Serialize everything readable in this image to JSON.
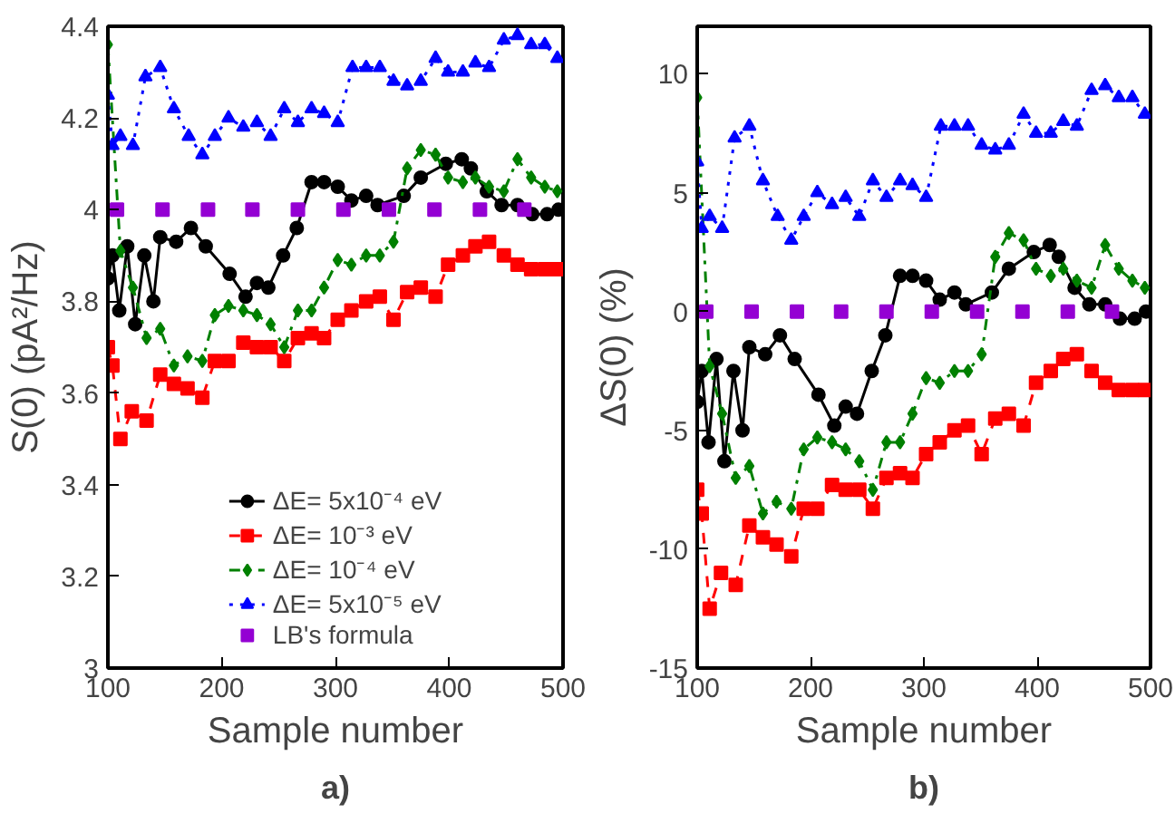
{
  "chart_data": [
    {
      "type": "line",
      "title": "a)",
      "xlabel": "Sample number",
      "ylabel": "S(0) (pA²/Hz)",
      "xlim": [
        100,
        500
      ],
      "xticks": [
        100,
        200,
        300,
        400,
        500
      ],
      "ylim": [
        3,
        4.4
      ],
      "yticks": [
        3,
        3.2,
        3.4,
        3.6,
        3.8,
        4,
        4.2,
        4.4
      ],
      "grid": false,
      "legend": "bottom",
      "series": [
        {
          "name": "ΔE= 5x10⁻⁴ eV",
          "color": "#000000",
          "marker": "circle",
          "line_style": "solid",
          "x": [
            100,
            104,
            110,
            117,
            124,
            132,
            140,
            146,
            160,
            173,
            186,
            207,
            221,
            231,
            241,
            254,
            266,
            279,
            290,
            302,
            314,
            327,
            337,
            360,
            375,
            397,
            411,
            419,
            433,
            446,
            460,
            473,
            486,
            496
          ],
          "values": [
            3.85,
            3.9,
            3.78,
            3.92,
            3.75,
            3.9,
            3.8,
            3.94,
            3.93,
            3.96,
            3.92,
            3.86,
            3.81,
            3.84,
            3.83,
            3.9,
            3.96,
            4.06,
            4.06,
            4.05,
            4.02,
            4.03,
            4.01,
            4.03,
            4.07,
            4.1,
            4.11,
            4.09,
            4.04,
            4.01,
            4.01,
            3.99,
            3.99,
            4.0
          ]
        },
        {
          "name": "ΔE= 10⁻³ eV",
          "color": "#ff0000",
          "marker": "square",
          "line_style": "dashed",
          "x": [
            100,
            104,
            111,
            121,
            134,
            146,
            158,
            170,
            183,
            194,
            206,
            219,
            231,
            243,
            255,
            267,
            279,
            290,
            302,
            314,
            327,
            339,
            351,
            363,
            375,
            388,
            399,
            412,
            423,
            435,
            448,
            460,
            472,
            484,
            495
          ],
          "values": [
            3.7,
            3.66,
            3.5,
            3.56,
            3.54,
            3.64,
            3.62,
            3.61,
            3.59,
            3.67,
            3.67,
            3.71,
            3.7,
            3.7,
            3.67,
            3.72,
            3.73,
            3.72,
            3.76,
            3.78,
            3.8,
            3.81,
            3.76,
            3.82,
            3.83,
            3.81,
            3.88,
            3.9,
            3.92,
            3.93,
            3.9,
            3.88,
            3.87,
            3.87,
            3.87
          ]
        },
        {
          "name": "ΔE= 10⁻⁴ eV",
          "color": "#008000",
          "marker": "diamond",
          "line_style": "dashdot",
          "x": [
            100,
            111,
            122,
            134,
            146,
            158,
            170,
            183,
            194,
            206,
            219,
            231,
            243,
            255,
            267,
            279,
            290,
            302,
            314,
            327,
            339,
            351,
            363,
            375,
            388,
            399,
            412,
            423,
            435,
            448,
            460,
            472,
            484,
            495
          ],
          "values": [
            4.36,
            3.91,
            3.83,
            3.72,
            3.74,
            3.66,
            3.68,
            3.67,
            3.77,
            3.79,
            3.78,
            3.77,
            3.75,
            3.7,
            3.78,
            3.78,
            3.83,
            3.89,
            3.88,
            3.9,
            3.9,
            3.93,
            4.09,
            4.13,
            4.12,
            4.07,
            4.06,
            4.07,
            4.05,
            4.04,
            4.11,
            4.07,
            4.05,
            4.04
          ]
        },
        {
          "name": "ΔE= 5x10⁻⁵ eV",
          "color": "#0000ff",
          "marker": "triangle",
          "line_style": "dotted",
          "x": [
            100,
            104,
            111,
            122,
            133,
            146,
            158,
            171,
            183,
            194,
            206,
            219,
            231,
            243,
            255,
            267,
            279,
            290,
            302,
            315,
            327,
            339,
            351,
            363,
            375,
            388,
            399,
            412,
            423,
            435,
            448,
            460,
            472,
            484,
            495
          ],
          "values": [
            4.25,
            4.14,
            4.16,
            4.14,
            4.29,
            4.31,
            4.22,
            4.16,
            4.12,
            4.16,
            4.2,
            4.18,
            4.19,
            4.16,
            4.22,
            4.19,
            4.22,
            4.21,
            4.19,
            4.31,
            4.31,
            4.31,
            4.28,
            4.27,
            4.28,
            4.33,
            4.3,
            4.3,
            4.32,
            4.31,
            4.37,
            4.38,
            4.36,
            4.36,
            4.33
          ]
        },
        {
          "name": "LB's formula",
          "type": "scatter",
          "color": "#9400d3",
          "marker": "square",
          "x": [
            108,
            148,
            188,
            227,
            267,
            307,
            347,
            387,
            427,
            466
          ],
          "values": [
            4,
            4,
            4,
            4,
            4,
            4,
            4,
            4,
            4,
            4
          ]
        }
      ]
    },
    {
      "type": "line",
      "title": "b)",
      "xlabel": "Sample number",
      "ylabel": "ΔS(0) (%)",
      "xlim": [
        100,
        500
      ],
      "xticks": [
        100,
        200,
        300,
        400,
        500
      ],
      "ylim": [
        -15,
        12
      ],
      "yticks": [
        -15,
        -10,
        -5,
        0,
        5,
        10
      ],
      "grid": false,
      "series": [
        {
          "color": "#000000",
          "marker": "circle",
          "line_style": "solid",
          "x": [
            100,
            104,
            110,
            117,
            124,
            132,
            140,
            146,
            160,
            173,
            186,
            207,
            221,
            231,
            241,
            254,
            266,
            279,
            290,
            302,
            314,
            327,
            337,
            360,
            375,
            397,
            411,
            419,
            433,
            446,
            460,
            473,
            486,
            496
          ],
          "values": [
            -3.8,
            -2.5,
            -5.5,
            -2,
            -6.3,
            -2.5,
            -5,
            -1.5,
            -1.8,
            -1,
            -2,
            -3.5,
            -4.8,
            -4,
            -4.3,
            -2.5,
            -1,
            1.5,
            1.5,
            1.3,
            0.5,
            0.8,
            0.3,
            0.8,
            1.8,
            2.5,
            2.8,
            2.3,
            1,
            0.3,
            0.3,
            -0.3,
            -0.3,
            0
          ]
        },
        {
          "color": "#ff0000",
          "marker": "square",
          "line_style": "dashed",
          "x": [
            100,
            104,
            111,
            121,
            134,
            146,
            158,
            170,
            183,
            194,
            206,
            219,
            231,
            243,
            255,
            267,
            279,
            290,
            302,
            314,
            327,
            339,
            351,
            363,
            375,
            388,
            399,
            412,
            423,
            435,
            448,
            460,
            472,
            484,
            495
          ],
          "values": [
            -7.5,
            -8.5,
            -12.5,
            -11,
            -11.5,
            -9,
            -9.5,
            -9.8,
            -10.3,
            -8.3,
            -8.3,
            -7.3,
            -7.5,
            -7.5,
            -8.3,
            -7,
            -6.8,
            -7,
            -6,
            -5.5,
            -5,
            -4.8,
            -6,
            -4.5,
            -4.3,
            -4.8,
            -3,
            -2.5,
            -2,
            -1.8,
            -2.5,
            -3,
            -3.3,
            -3.3,
            -3.3
          ]
        },
        {
          "color": "#008000",
          "marker": "diamond",
          "line_style": "dashdot",
          "x": [
            100,
            111,
            122,
            134,
            146,
            158,
            170,
            183,
            194,
            206,
            219,
            231,
            243,
            255,
            267,
            279,
            290,
            302,
            314,
            327,
            339,
            351,
            363,
            375,
            388,
            399,
            412,
            423,
            435,
            448,
            460,
            472,
            484,
            495
          ],
          "values": [
            9,
            -2.3,
            -4.3,
            -7,
            -6.5,
            -8.5,
            -8,
            -8.3,
            -5.8,
            -5.3,
            -5.5,
            -5.8,
            -6.3,
            -7.5,
            -5.5,
            -5.5,
            -4.3,
            -2.8,
            -3,
            -2.5,
            -2.5,
            -1.8,
            2.3,
            3.3,
            3,
            1.8,
            1.5,
            1.8,
            1.3,
            1,
            2.8,
            1.8,
            1.3,
            1
          ]
        },
        {
          "color": "#0000ff",
          "marker": "triangle",
          "line_style": "dotted",
          "x": [
            100,
            104,
            111,
            122,
            133,
            146,
            158,
            171,
            183,
            194,
            206,
            219,
            231,
            243,
            255,
            267,
            279,
            290,
            302,
            315,
            327,
            339,
            351,
            363,
            375,
            388,
            399,
            412,
            423,
            435,
            448,
            460,
            472,
            484,
            495
          ],
          "values": [
            6.3,
            3.5,
            4,
            3.5,
            7.3,
            7.8,
            5.5,
            4,
            3,
            4,
            5,
            4.5,
            4.8,
            4,
            5.5,
            4.8,
            5.5,
            5.3,
            4.8,
            7.8,
            7.8,
            7.8,
            7,
            6.8,
            7,
            8.3,
            7.5,
            7.5,
            8,
            7.8,
            9.3,
            9.5,
            9,
            9,
            8.3
          ]
        },
        {
          "type": "scatter",
          "color": "#9400d3",
          "marker": "square",
          "x": [
            108,
            148,
            188,
            227,
            267,
            307,
            347,
            387,
            427,
            466
          ],
          "values": [
            0,
            0,
            0,
            0,
            0,
            0,
            0,
            0,
            0,
            0
          ]
        }
      ]
    }
  ]
}
